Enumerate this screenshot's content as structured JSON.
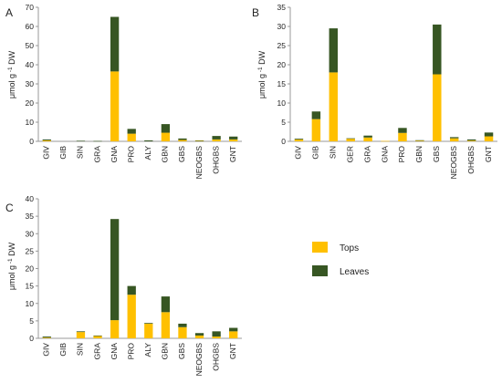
{
  "colors": {
    "tops": "#FFC000",
    "leaves": "#375623",
    "axis": "#999999"
  },
  "legend": {
    "tops": "Tops",
    "leaves": "Leaves"
  },
  "chart_data": [
    {
      "type": "bar",
      "stacked": true,
      "panel": "A",
      "ylabel_prefix": "μmol g",
      "ylabel_sup": "-1",
      "ylabel_suffix": " DW",
      "ylim": [
        0,
        70
      ],
      "yticks": [
        0,
        10,
        20,
        30,
        40,
        50,
        60,
        70
      ],
      "categories": [
        "GIV",
        "GIB",
        "SIN",
        "GRA",
        "GNA",
        "PRO",
        "ALY",
        "GBN",
        "GBS",
        "NEOGBS",
        "OHGBS",
        "GNT"
      ],
      "series": [
        {
          "name": "Tops",
          "values": [
            0.5,
            0,
            0,
            0,
            36.5,
            4,
            0,
            4.5,
            0.7,
            0.3,
            1,
            1
          ]
        },
        {
          "name": "Leaves",
          "values": [
            0.5,
            0,
            0.3,
            0.2,
            28.5,
            2.5,
            0.5,
            4.5,
            0.8,
            0.2,
            1.8,
            1.5
          ]
        }
      ]
    },
    {
      "type": "bar",
      "stacked": true,
      "panel": "B",
      "ylabel_prefix": "μmol g",
      "ylabel_sup": "-1",
      "ylabel_suffix": " DW",
      "ylim": [
        0,
        35
      ],
      "yticks": [
        0,
        5,
        10,
        15,
        20,
        25,
        30,
        35
      ],
      "categories": [
        "GIV",
        "GIB",
        "SIN",
        "GER",
        "GRA",
        "GNA",
        "PRO",
        "GBN",
        "GBS",
        "NEOGBS",
        "OHGBS",
        "GNT"
      ],
      "series": [
        {
          "name": "Tops",
          "values": [
            0.5,
            5.8,
            18,
            0.7,
            1,
            0.1,
            2.2,
            0.2,
            17.5,
            0.8,
            0.2,
            1.3
          ]
        },
        {
          "name": "Leaves",
          "values": [
            0.2,
            2,
            11.5,
            0.1,
            0.5,
            0,
            1.3,
            0.1,
            13,
            0.3,
            0.3,
            1
          ]
        }
      ]
    },
    {
      "type": "bar",
      "stacked": true,
      "panel": "C",
      "ylabel_prefix": "μmol g",
      "ylabel_sup": "-1",
      "ylabel_suffix": " DW",
      "ylim": [
        0,
        40
      ],
      "yticks": [
        0,
        5,
        10,
        15,
        20,
        25,
        30,
        35,
        40
      ],
      "categories": [
        "GIV",
        "GIB",
        "SIN",
        "GRA",
        "GNA",
        "PRO",
        "ALY",
        "GBN",
        "GBS",
        "NEOGBS",
        "OHGBS",
        "GNT"
      ],
      "series": [
        {
          "name": "Tops",
          "values": [
            0.2,
            0,
            1.8,
            0.7,
            5.2,
            12.5,
            4.2,
            7.5,
            3.2,
            0.8,
            0.5,
            2
          ]
        },
        {
          "name": "Leaves",
          "values": [
            0.3,
            0,
            0.2,
            0.1,
            29,
            2.5,
            0.2,
            4.5,
            1,
            0.7,
            1.5,
            1
          ]
        }
      ]
    }
  ]
}
